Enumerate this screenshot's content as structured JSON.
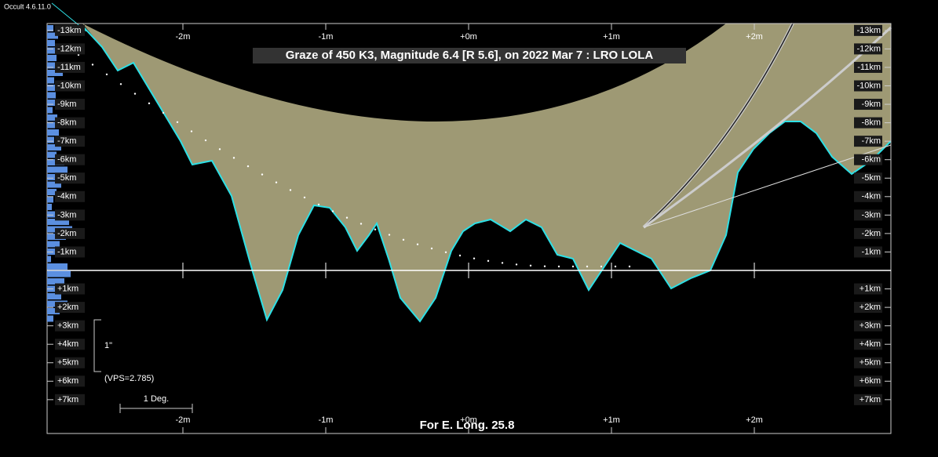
{
  "app_version": "Occult 4.6.11.0",
  "title": "Graze of  450 K3,  Magnitude 6.4 [R 5.6],  on 2022 Mar  7  :  LRO LOLA",
  "footer": "For E. Long. 25.8",
  "top_axis_labels": [
    "-2m",
    "-1m",
    "+0m",
    "+1m",
    "+2m"
  ],
  "bottom_axis_labels": [
    "-2m",
    "-1m",
    "+0m",
    "+1m",
    "+2m"
  ],
  "left_axis_labels": [
    "-13km",
    "-12km",
    "-11km",
    "-10km",
    "-9km",
    "-8km",
    "-7km",
    "-6km",
    "-5km",
    "-4km",
    "-3km",
    "-2km",
    "-1km",
    "+1km",
    "+2km",
    "+3km",
    "+4km",
    "+5km",
    "+6km",
    "+7km"
  ],
  "right_axis_labels": [
    "-13km",
    "-12km",
    "-11km",
    "-10km",
    "-9km",
    "-8km",
    "-7km",
    "-6km",
    "-5km",
    "-4km",
    "-3km",
    "-2km",
    "-1km",
    "+1km",
    "+2km",
    "+3km",
    "+4km",
    "+5km",
    "+6km",
    "+7km"
  ],
  "scale": {
    "arcsec": "1\"",
    "vps": "(VPS=2.785)",
    "degree": "1 Deg."
  }
}
